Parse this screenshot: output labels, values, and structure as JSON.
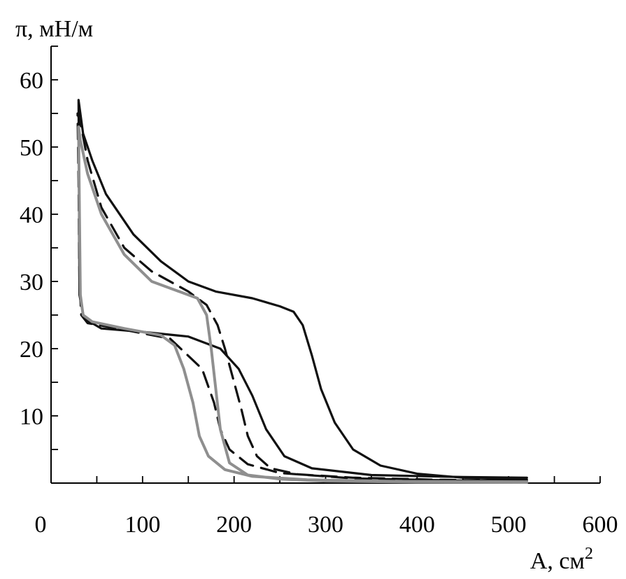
{
  "chart_data": {
    "type": "line",
    "xlabel": "A, см",
    "xlabel_superscript": "2",
    "ylabel": "π, мН/м",
    "xlim": [
      0,
      600
    ],
    "ylim": [
      0,
      65
    ],
    "x_ticks": [
      0,
      100,
      200,
      300,
      400,
      500,
      600
    ],
    "y_ticks": [
      10,
      20,
      30,
      40,
      50,
      60
    ],
    "grid": false,
    "series": [
      {
        "color": "#111111",
        "style": "solid",
        "points": [
          [
            520,
            0.5
          ],
          [
            450,
            0.8
          ],
          [
            400,
            1.4
          ],
          [
            360,
            2.6
          ],
          [
            330,
            5
          ],
          [
            310,
            9
          ],
          [
            295,
            14
          ],
          [
            285,
            19
          ],
          [
            275,
            23.5
          ],
          [
            265,
            25.5
          ],
          [
            250,
            26.3
          ],
          [
            220,
            27.5
          ],
          [
            180,
            28.5
          ],
          [
            150,
            30
          ],
          [
            120,
            33
          ],
          [
            90,
            37
          ],
          [
            60,
            43
          ],
          [
            45,
            48
          ],
          [
            35,
            52
          ],
          [
            30,
            57
          ],
          [
            31,
            28
          ],
          [
            36,
            24.5
          ],
          [
            55,
            23
          ],
          [
            100,
            22.5
          ],
          [
            150,
            21.8
          ],
          [
            185,
            20
          ],
          [
            205,
            17
          ],
          [
            220,
            13
          ],
          [
            235,
            8
          ],
          [
            255,
            4
          ],
          [
            285,
            2.2
          ],
          [
            350,
            1.2
          ],
          [
            450,
            0.9
          ],
          [
            520,
            0.8
          ]
        ]
      },
      {
        "color": "#111111",
        "style": "dashed",
        "points": [
          [
            520,
            0.3
          ],
          [
            420,
            0.5
          ],
          [
            330,
            0.8
          ],
          [
            270,
            1.3
          ],
          [
            240,
            2.2
          ],
          [
            225,
            4
          ],
          [
            215,
            7
          ],
          [
            208,
            11
          ],
          [
            200,
            15
          ],
          [
            190,
            20
          ],
          [
            182,
            23.5
          ],
          [
            170,
            26.5
          ],
          [
            150,
            28.5
          ],
          [
            110,
            31.5
          ],
          [
            80,
            35
          ],
          [
            55,
            41
          ],
          [
            40,
            48
          ],
          [
            33,
            53
          ],
          [
            29,
            55
          ],
          [
            30,
            45
          ],
          [
            31,
            30
          ],
          [
            33,
            25
          ],
          [
            40,
            23.8
          ],
          [
            80,
            22.8
          ],
          [
            130,
            21.5
          ],
          [
            165,
            17
          ],
          [
            178,
            12
          ],
          [
            185,
            8
          ],
          [
            195,
            5
          ],
          [
            215,
            2.8
          ],
          [
            250,
            1.5
          ],
          [
            330,
            0.7
          ],
          [
            440,
            0.4
          ],
          [
            520,
            0.3
          ]
        ]
      },
      {
        "color": "#8f8f8f",
        "style": "solid",
        "points": [
          [
            520,
            0.1
          ],
          [
            400,
            0.15
          ],
          [
            300,
            0.3
          ],
          [
            250,
            0.6
          ],
          [
            215,
            1.2
          ],
          [
            195,
            3
          ],
          [
            185,
            8
          ],
          [
            180,
            14
          ],
          [
            175,
            20
          ],
          [
            170,
            25
          ],
          [
            160,
            27.5
          ],
          [
            140,
            28.5
          ],
          [
            110,
            30
          ],
          [
            80,
            34
          ],
          [
            55,
            40
          ],
          [
            40,
            46
          ],
          [
            32,
            51
          ],
          [
            30,
            53
          ],
          [
            31,
            40
          ],
          [
            32,
            28
          ],
          [
            35,
            25
          ],
          [
            45,
            24
          ],
          [
            80,
            23
          ],
          [
            120,
            22
          ],
          [
            135,
            20.5
          ],
          [
            145,
            17
          ],
          [
            155,
            12
          ],
          [
            162,
            7
          ],
          [
            172,
            4
          ],
          [
            190,
            2
          ],
          [
            220,
            1
          ],
          [
            280,
            0.5
          ],
          [
            380,
            0.25
          ],
          [
            520,
            0.2
          ]
        ]
      }
    ]
  }
}
